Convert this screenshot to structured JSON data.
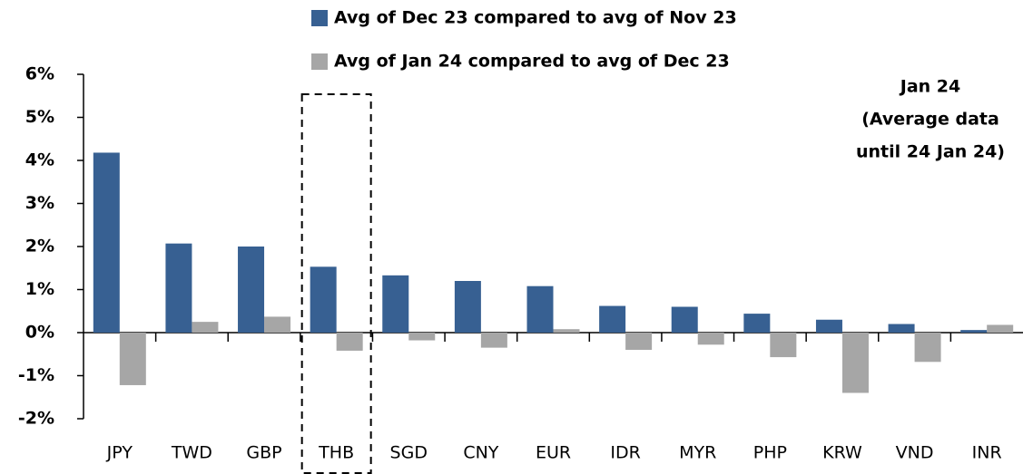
{
  "chart_data": {
    "type": "bar",
    "categories": [
      "JPY",
      "TWD",
      "GBP",
      "THB",
      "SGD",
      "CNY",
      "EUR",
      "IDR",
      "MYR",
      "PHP",
      "KRW",
      "VND",
      "INR"
    ],
    "series": [
      {
        "name": "Avg of Dec 23 compared to avg of Nov 23",
        "color": "#376092",
        "values": [
          4.18,
          2.07,
          2.0,
          1.53,
          1.33,
          1.2,
          1.08,
          0.62,
          0.6,
          0.44,
          0.3,
          0.2,
          0.06
        ]
      },
      {
        "name": "Avg of Jan 24 compared to avg of Dec 23",
        "color": "#a6a6a6",
        "values": [
          -1.22,
          0.25,
          0.37,
          -0.42,
          -0.18,
          -0.35,
          0.08,
          -0.4,
          -0.28,
          -0.57,
          -1.4,
          -0.68,
          0.18
        ]
      }
    ],
    "ylim": [
      -2,
      6
    ],
    "yticks": [
      {
        "value": -2,
        "label": "-2%"
      },
      {
        "value": -1,
        "label": "-1%"
      },
      {
        "value": 0,
        "label": "0%"
      },
      {
        "value": 1,
        "label": "1%"
      },
      {
        "value": 2,
        "label": "2%"
      },
      {
        "value": 3,
        "label": "3%"
      },
      {
        "value": 4,
        "label": "4%"
      },
      {
        "value": 5,
        "label": "5%"
      },
      {
        "value": 6,
        "label": "6%"
      }
    ],
    "annotation": [
      "Jan 24",
      "(Average data",
      "until 24 Jan 24)"
    ],
    "highlight_category": "THB"
  }
}
